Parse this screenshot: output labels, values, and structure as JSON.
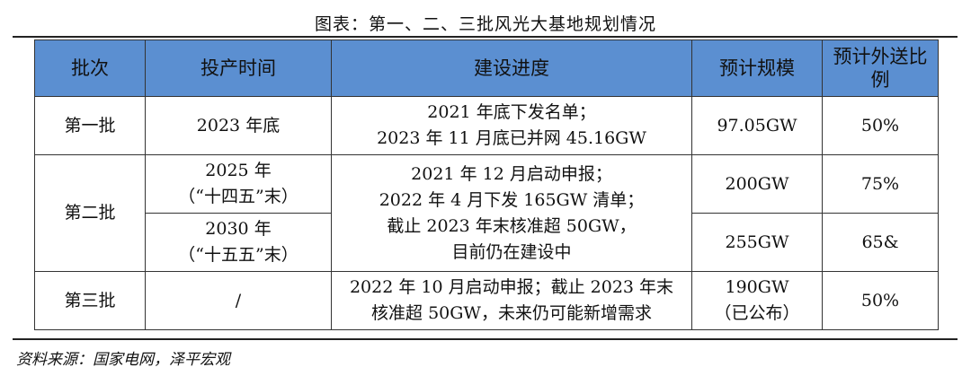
{
  "title": "图表：第一、二、三批风光大基地规划情况",
  "headers": [
    "批次",
    "投产时间",
    "建设进度",
    "预计规模",
    "预计外送比例"
  ],
  "rows": {
    "r1": {
      "batch": "第一批",
      "time": "2023 年底",
      "progress": [
        "2021 年底下发名单；",
        "2023 年 11 月底已并网 45.16GW"
      ],
      "scale": "97.05GW",
      "ratio": "50%"
    },
    "r2": {
      "batch": "第二批",
      "time_a": [
        "2025 年",
        "（“十四五”末）"
      ],
      "time_b": [
        "2030 年",
        "（“十五五”末）"
      ],
      "progress": [
        "2021 年 12 月启动申报；",
        "2022 年 4 月下发 165GW 清单；",
        "截止 2023 年末核准超 50GW，",
        "目前仍在建设中"
      ],
      "scale_a": "200GW",
      "ratio_a": "75%",
      "scale_b": "255GW",
      "ratio_b": "65&"
    },
    "r3": {
      "batch": "第三批",
      "time": "/",
      "progress": [
        "2022 年 10 月启动申报；截止 2023 年末",
        "核准超 50GW，未来仍可能新增需求"
      ],
      "scale": [
        "190GW",
        "（已公布）"
      ],
      "ratio": "50%"
    }
  },
  "source": "资料来源：国家电网，泽平宏观"
}
